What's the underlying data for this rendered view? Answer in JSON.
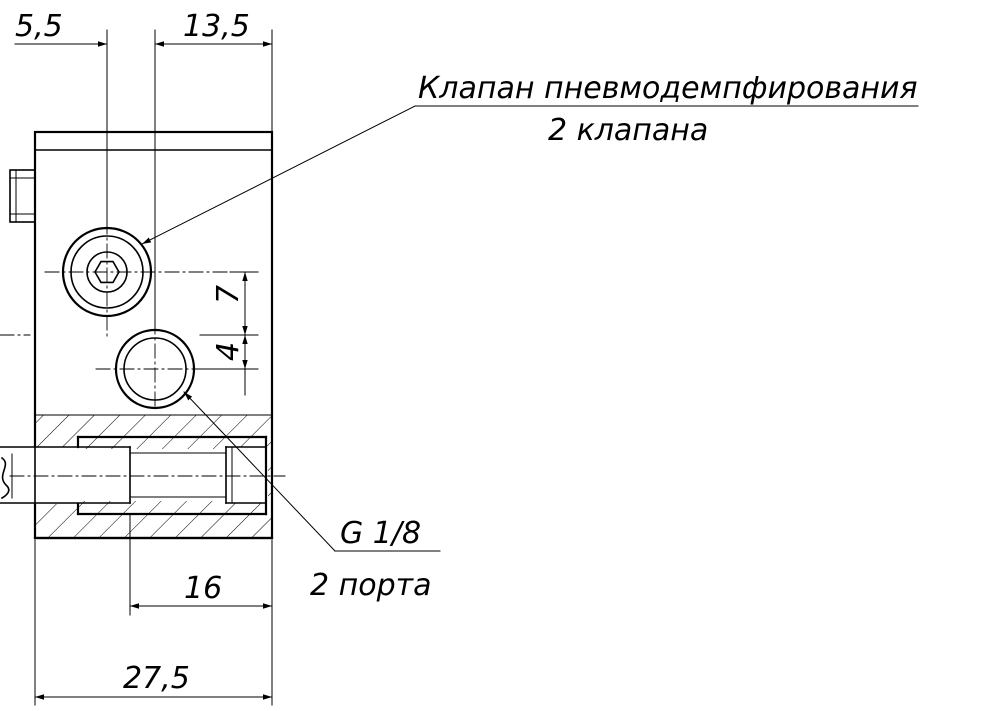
{
  "dimensions": {
    "top_left": "5,5",
    "top_right": "13,5",
    "vertical_upper": "7",
    "vertical_lower": "4",
    "bottom_inner": "16",
    "bottom_overall": "27,5"
  },
  "callouts": {
    "valve": {
      "title": "Клапан пневмодемпфирования",
      "subtitle": "2 клапана"
    },
    "port": {
      "title": "G 1/8",
      "subtitle": "2 порта"
    }
  }
}
